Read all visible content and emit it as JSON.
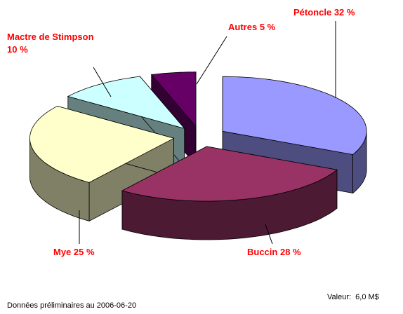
{
  "chart_data": {
    "type": "pie3d",
    "categories": [
      "Pétoncle",
      "Buccin",
      "Mye",
      "Mactre de Stimpson",
      "Autres"
    ],
    "values": [
      32,
      28,
      25,
      10,
      5
    ],
    "value_labels": [
      "32 %",
      "28 %",
      "25 %",
      "10 %",
      "5 %"
    ],
    "colors": [
      "#9999ff",
      "#993366",
      "#ffffcc",
      "#ccffff",
      "#660066"
    ],
    "side_colors": [
      "#4d4d80",
      "#4d1a33",
      "#808066",
      "#668080",
      "#330033"
    ],
    "label_color": "#ff0000",
    "footnote": "Données préliminaires au 2006-06-20",
    "value_note": "Valeur:  6,0 M$"
  }
}
